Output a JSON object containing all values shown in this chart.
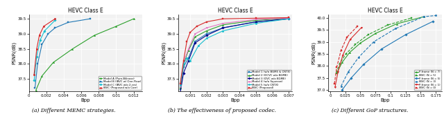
{
  "plot1": {
    "title": "HEVC Class E",
    "xlabel": "Bpp",
    "ylabel": "PSNR(dB)",
    "xlim": [
      0.0,
      0.013
    ],
    "ylim": [
      37.1,
      39.65
    ],
    "yticks": [
      37.5,
      38.0,
      38.5,
      39.0,
      39.5
    ],
    "xticks": [
      0.0,
      0.002,
      0.004,
      0.006,
      0.008,
      0.01,
      0.012
    ],
    "caption": "(a) Different MEMC strategies.",
    "series": [
      {
        "label": "Model A (Pure-Bilinear)",
        "color": "#2ca02c",
        "marker": "^",
        "linestyle": "-",
        "x": [
          0.0008,
          0.0015,
          0.0028,
          0.005,
          0.0075,
          0.01,
          0.012
        ],
        "y": [
          37.12,
          37.6,
          38.05,
          38.5,
          38.95,
          39.25,
          39.5
        ]
      },
      {
        "label": "Model B (IBVC w/ One-Flow)",
        "color": "#1f77b4",
        "marker": "s",
        "linestyle": "-",
        "x": [
          0.0007,
          0.001,
          0.0015,
          0.0022,
          0.003,
          0.0045,
          0.007
        ],
        "y": [
          37.2,
          38.0,
          38.65,
          39.0,
          39.2,
          39.38,
          39.5
        ]
      },
      {
        "label": "Model C (IBVC w/o 2-res)",
        "color": "#17becf",
        "marker": "D",
        "linestyle": "-",
        "x": [
          0.0006,
          0.0009,
          0.0013,
          0.0018,
          0.003
        ],
        "y": [
          37.45,
          38.25,
          38.8,
          39.1,
          39.45
        ]
      },
      {
        "label": "IBVC (Proposed w/o Corr)",
        "color": "#d62728",
        "marker": "o",
        "linestyle": "-",
        "x": [
          0.0006,
          0.0009,
          0.0012,
          0.0017,
          0.003
        ],
        "y": [
          37.65,
          38.5,
          38.95,
          39.25,
          39.5
        ]
      }
    ]
  },
  "plot2": {
    "title": "HEVC Class E",
    "xlabel": "Bpp",
    "ylabel": "PSNR(dB)",
    "xlim": [
      0.0003,
      0.0072
    ],
    "ylim": [
      37.1,
      39.65
    ],
    "yticks": [
      37.5,
      38.0,
      38.5,
      39.0,
      39.5
    ],
    "xticks": [
      0.001,
      0.002,
      0.003,
      0.004,
      0.005,
      0.006,
      0.007
    ],
    "caption": "(b) The effectiveness of proposed codec.",
    "series": [
      {
        "label": "Model 1 (w/o BGME & CNTX)",
        "color": "#1f77b4",
        "marker": "s",
        "linestyle": "-",
        "x": [
          0.0004,
          0.0006,
          0.0009,
          0.0013,
          0.002,
          0.003,
          0.005,
          0.007
        ],
        "y": [
          37.15,
          37.9,
          38.2,
          38.75,
          39.0,
          39.2,
          39.4,
          39.5
        ]
      },
      {
        "label": "Model 2 (DCVC w/o BGME)",
        "color": "#2ca02c",
        "marker": "^",
        "linestyle": "-",
        "x": [
          0.0004,
          0.0006,
          0.0009,
          0.0013,
          0.002,
          0.003,
          0.005,
          0.007
        ],
        "y": [
          37.2,
          38.0,
          38.45,
          38.9,
          39.1,
          39.3,
          39.45,
          39.52
        ]
      },
      {
        "label": "Model 3 (DVC w/o BGME)",
        "color": "#00008b",
        "marker": "D",
        "linestyle": "-",
        "x": [
          0.0004,
          0.0006,
          0.0009,
          0.0013,
          0.002,
          0.003,
          0.005,
          0.007
        ],
        "y": [
          37.05,
          37.7,
          38.1,
          38.7,
          38.95,
          39.2,
          39.4,
          39.5
        ]
      },
      {
        "label": "Model 4 (w/o Squeeze)",
        "color": "#e377c2",
        "marker": "v",
        "linestyle": "-",
        "x": [
          0.0004,
          0.0006,
          0.0009,
          0.0013,
          0.002,
          0.003,
          0.005,
          0.007
        ],
        "y": [
          37.25,
          38.05,
          38.5,
          39.0,
          39.2,
          39.35,
          39.48,
          39.52
        ]
      },
      {
        "label": "Model 5 (w/o CNTX)",
        "color": "#17becf",
        "marker": "o",
        "linestyle": "-",
        "x": [
          0.0004,
          0.0006,
          0.0008,
          0.001,
          0.0015,
          0.002,
          0.003,
          0.005,
          0.007
        ],
        "y": [
          37.3,
          38.0,
          38.2,
          38.1,
          38.6,
          38.85,
          39.1,
          39.35,
          39.5
        ]
      },
      {
        "label": "IBVC (Proposed)",
        "color": "#d62728",
        "marker": "s",
        "linestyle": "-",
        "x": [
          0.0004,
          0.0006,
          0.0008,
          0.001,
          0.0014,
          0.002,
          0.003,
          0.005,
          0.007
        ],
        "y": [
          37.35,
          38.1,
          38.75,
          39.05,
          39.25,
          39.4,
          39.5,
          39.52,
          39.54
        ]
      }
    ]
  },
  "plot3": {
    "title": "HEVC Class E",
    "xlabel": "Bpp",
    "ylabel": "PSNR(dB)",
    "xlim": [
      -0.003,
      0.185
    ],
    "ylim": [
      36.95,
      40.15
    ],
    "yticks": [
      37.0,
      37.5,
      38.0,
      38.5,
      39.0,
      39.5,
      40.0
    ],
    "xticks": [
      0.0,
      0.025,
      0.05,
      0.075,
      0.1,
      0.125,
      0.15,
      0.175
    ],
    "caption": "(c) Different GoP structures.",
    "series": [
      {
        "label": "P-frame (N = 7)",
        "color": "#2ca02c",
        "marker": "^",
        "linestyle": "-",
        "x": [
          0.012,
          0.02,
          0.032,
          0.05,
          0.075,
          0.11,
          0.155
        ],
        "y": [
          37.75,
          38.15,
          38.55,
          38.95,
          39.35,
          39.75,
          40.05
        ]
      },
      {
        "label": "IBVC (N = 5)",
        "color": "#2ca02c",
        "marker": "s",
        "linestyle": "--",
        "x": [
          0.01,
          0.016,
          0.026,
          0.042,
          0.063,
          0.095,
          0.135
        ],
        "y": [
          37.7,
          38.1,
          38.5,
          38.9,
          39.3,
          39.7,
          40.0
        ]
      },
      {
        "label": "P-frame (N = 5)",
        "color": "#1f77b4",
        "marker": "D",
        "linestyle": "-",
        "x": [
          0.02,
          0.035,
          0.055,
          0.085,
          0.125,
          0.17
        ],
        "y": [
          37.0,
          37.5,
          38.05,
          38.7,
          39.3,
          39.85
        ]
      },
      {
        "label": "IBVC (N = 3)",
        "color": "#1f77b4",
        "marker": "o",
        "linestyle": "--",
        "x": [
          0.018,
          0.03,
          0.047,
          0.072,
          0.108,
          0.155,
          0.175
        ],
        "y": [
          37.15,
          37.75,
          38.35,
          39.0,
          39.55,
          40.05,
          40.1
        ]
      },
      {
        "label": "P-frame (N = 1)",
        "color": "#d62728",
        "marker": "v",
        "linestyle": "-",
        "x": [
          0.008,
          0.013,
          0.021,
          0.033,
          0.052
        ],
        "y": [
          37.1,
          37.75,
          38.45,
          39.1,
          39.6
        ]
      },
      {
        "label": "IBVC (N = 0)",
        "color": "#d62728",
        "marker": "s",
        "linestyle": "--",
        "x": [
          0.007,
          0.011,
          0.018,
          0.028,
          0.045
        ],
        "y": [
          37.25,
          37.95,
          38.65,
          39.2,
          39.65
        ]
      }
    ]
  }
}
